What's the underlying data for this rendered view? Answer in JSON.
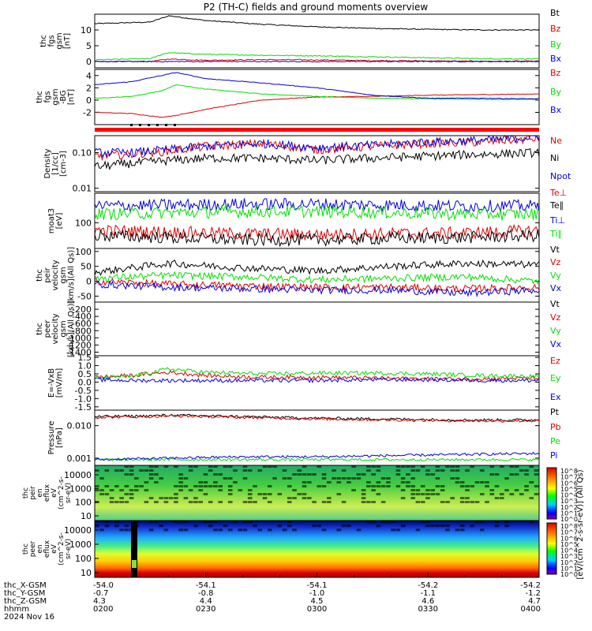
{
  "title": "P2 (TH-C) fields and ground moments overview",
  "colors": {
    "black": "#000000",
    "red": "#e00000",
    "green": "#00e000",
    "blue": "#0000e0"
  },
  "panels": [
    {
      "ylabel": [
        "thc",
        "fgs",
        "gsm",
        "[nT]"
      ],
      "yticks": [
        "10",
        "5",
        "0"
      ],
      "legend": [
        {
          "text": "Bt",
          "color": "#000000"
        },
        {
          "text": "Bz",
          "color": "#e00000"
        },
        {
          "text": "By",
          "color": "#00e000"
        },
        {
          "text": "Bx",
          "color": "#0000e0"
        }
      ]
    },
    {
      "ylabel": [
        "thc",
        "fgs",
        "gsm",
        "-BG",
        "[nT]"
      ],
      "yticks": [
        "4",
        "2",
        "0",
        "-2"
      ],
      "legend": [
        {
          "text": "Bz",
          "color": "#e00000"
        },
        {
          "text": "By",
          "color": "#00e000"
        },
        {
          "text": "Bx",
          "color": "#0000e0"
        }
      ]
    },
    {
      "ylabel": [
        "Density",
        "[1/cc]",
        "[cm-3]"
      ],
      "yticks": [
        "0.10",
        "0.01"
      ],
      "legend": [
        {
          "text": "Ne",
          "color": "#e00000"
        },
        {
          "text": "Ni",
          "color": "#000000"
        },
        {
          "text": "Npot",
          "color": "#0000e0"
        }
      ]
    },
    {
      "ylabel": [
        "moat3",
        "[eV]"
      ],
      "yticks": [
        "100"
      ],
      "legend": [
        {
          "text": "Te⊥",
          "color": "#e00000"
        },
        {
          "text": "Te∥",
          "color": "#000000"
        },
        {
          "text": "Ti⊥",
          "color": "#0000e0"
        },
        {
          "text": "Ti∥",
          "color": "#00e000"
        }
      ]
    },
    {
      "ylabel": [
        "thc",
        "peir",
        "velocity",
        "gsm",
        "[km/s](All Qs)]"
      ],
      "yticks": [
        "100",
        "50",
        "0",
        "-50"
      ],
      "legend": [
        {
          "text": "Vt",
          "color": "#000000"
        },
        {
          "text": "Vz",
          "color": "#e00000"
        },
        {
          "text": "Vy",
          "color": "#00e000"
        },
        {
          "text": "Vx",
          "color": "#0000e0"
        }
      ]
    },
    {
      "ylabel": [
        "thc",
        "peer",
        "velocity",
        "gsm",
        "[km/s](All Qs)]"
      ],
      "yticks": [
        "-200",
        "-400",
        "-600",
        "-800",
        "-1000",
        "-1200",
        "-1400"
      ],
      "legend": [
        {
          "text": "Vt",
          "color": "#000000"
        },
        {
          "text": "Vz",
          "color": "#e00000"
        },
        {
          "text": "Vy",
          "color": "#00e000"
        },
        {
          "text": "Vx",
          "color": "#0000e0"
        }
      ]
    },
    {
      "ylabel": [
        "E=-VxB",
        "[mV/m]"
      ],
      "yticks": [
        "1.5",
        "1.0",
        "0.5",
        "0.0",
        "-0.5",
        "-1.0",
        "-1.5"
      ],
      "legend": [
        {
          "text": "Ez",
          "color": "#e00000"
        },
        {
          "text": "Ey",
          "color": "#00e000"
        },
        {
          "text": "Ex",
          "color": "#0000e0"
        }
      ]
    },
    {
      "ylabel": [
        "Pressure",
        "[nPa]"
      ],
      "yticks": [
        "0.010",
        "0.001"
      ],
      "legend": [
        {
          "text": "Pt",
          "color": "#000000"
        },
        {
          "text": "Pb",
          "color": "#e00000"
        },
        {
          "text": "Pe",
          "color": "#00e000"
        },
        {
          "text": "Pi",
          "color": "#0000e0"
        }
      ]
    },
    {
      "ylabel": [
        "thc",
        "peir",
        "en",
        "eflux",
        "eV",
        "(cm^2-s-",
        "sr-eV)"
      ],
      "yticks": [
        "10000",
        "1000",
        "100",
        "10"
      ]
    },
    {
      "ylabel": [
        "thc",
        "peer",
        "en",
        "eflux",
        "eV",
        "(cm^2-s-",
        "sr-eV)"
      ],
      "yticks": [
        "10000",
        "1000",
        "100",
        "10"
      ]
    }
  ],
  "colorbar": {
    "label": "[eV/(cm^2-s-sr-eV)] (All Qs)",
    "ticks_ion": [
      "10^8",
      "10^7",
      "10^6",
      "10^5",
      "10^4",
      "10^3",
      "10^2",
      "10^1",
      "10^0"
    ],
    "ticks_elec": [
      "10^8",
      "10^7",
      "10^6",
      "10^5",
      "10^4",
      "10^3",
      "10^2",
      "10^1",
      "10^0"
    ]
  },
  "x_axis": {
    "rows": [
      {
        "label": "thc_X-GSM",
        "values": [
          "-54.0",
          "-54.1",
          "-54.1",
          "-54.2",
          "-54.2"
        ]
      },
      {
        "label": "thc_Y-GSM",
        "values": [
          "-0.7",
          "-0.8",
          "-1.0",
          "-1.1",
          "-1.2"
        ]
      },
      {
        "label": "thc_Z-GSM",
        "values": [
          "4.3",
          "4.4",
          "4.5",
          "4.6",
          "4.7"
        ]
      },
      {
        "label": "hhmm",
        "values": [
          "0200",
          "0230",
          "0300",
          "0330",
          "0400"
        ]
      }
    ],
    "date": "2024 Nov 16"
  },
  "chart_data": {
    "type": "line",
    "title": "P2 (TH-C) fields and ground moments overview",
    "x": [
      "0200",
      "0230",
      "0300",
      "0330",
      "0400"
    ],
    "xlabel": "hhmm",
    "panels": [
      {
        "ylabel": "thc fgs gsm [nT]",
        "ylim": [
          -2,
          15
        ],
        "series": [
          {
            "name": "Bt",
            "x": [
              0,
              15,
              20,
              30,
              45,
              60,
              75,
              90,
              105,
              120
            ],
            "values": [
              12,
              12.5,
              14.5,
              13,
              11.8,
              11,
              10.5,
              10.2,
              10,
              10
            ]
          },
          {
            "name": "Bz",
            "x": [
              0,
              15,
              20,
              30,
              45,
              60,
              75,
              90,
              105,
              120
            ],
            "values": [
              0,
              0,
              0.8,
              0.4,
              0.6,
              0.5,
              0.3,
              0.2,
              0.1,
              0.1
            ]
          },
          {
            "name": "By",
            "x": [
              0,
              15,
              20,
              30,
              45,
              60,
              75,
              90,
              105,
              120
            ],
            "values": [
              0.5,
              1,
              2.8,
              2.3,
              2,
              1.8,
              1.5,
              1.2,
              0.9,
              0.8
            ]
          },
          {
            "name": "Bx",
            "x": [
              0,
              15,
              20,
              30,
              45,
              60,
              75,
              90,
              105,
              120
            ],
            "values": [
              0,
              0,
              0,
              0,
              0,
              0,
              0,
              0,
              0,
              0
            ]
          }
        ]
      },
      {
        "ylabel": "thc fgs gsm -BG [nT]",
        "ylim": [
          -4,
          5
        ],
        "series": [
          {
            "name": "Bz",
            "x": [
              0,
              10,
              18,
              22,
              30,
              45,
              60,
              75,
              90,
              105,
              120
            ],
            "values": [
              -2,
              -2.2,
              -2.8,
              -2.5,
              -1.5,
              0,
              0.5,
              0.6,
              0.8,
              0.9,
              1.0
            ]
          },
          {
            "name": "By",
            "x": [
              0,
              10,
              18,
              22,
              30,
              45,
              60,
              75,
              90,
              105,
              120
            ],
            "values": [
              0.3,
              0.6,
              1.5,
              2.5,
              1.8,
              1.0,
              0.6,
              0.3,
              0.2,
              0.1,
              0.1
            ]
          },
          {
            "name": "Bx",
            "x": [
              0,
              10,
              18,
              22,
              30,
              45,
              60,
              75,
              90,
              105,
              120
            ],
            "values": [
              2.5,
              3.0,
              4.0,
              4.5,
              3.5,
              2.8,
              2.0,
              0.8,
              0.3,
              0.3,
              0.2
            ]
          }
        ]
      },
      {
        "ylabel": "Density [1/cc] [cm-3]",
        "ylim": [
          0.008,
          0.3
        ],
        "scale": "log",
        "series": [
          {
            "name": "Ne",
            "x": [
              0,
              10,
              20,
              30,
              45,
              60,
              75,
              90,
              105,
              120
            ],
            "values": [
              0.08,
              0.09,
              0.11,
              0.15,
              0.18,
              0.12,
              0.15,
              0.18,
              0.2,
              0.25
            ]
          },
          {
            "name": "Ni",
            "x": [
              0,
              10,
              20,
              30,
              45,
              60,
              75,
              90,
              105,
              120
            ],
            "values": [
              0.04,
              0.05,
              0.06,
              0.07,
              0.07,
              0.06,
              0.07,
              0.08,
              0.09,
              0.1
            ]
          },
          {
            "name": "Npot",
            "x": [
              0,
              10,
              20,
              30,
              45,
              60,
              75,
              90,
              105,
              120
            ],
            "values": [
              0.1,
              0.1,
              0.12,
              0.15,
              0.18,
              0.14,
              0.16,
              0.2,
              0.22,
              0.28
            ]
          }
        ]
      },
      {
        "ylabel": "moat3 [eV]",
        "ylim": [
          30,
          400
        ],
        "scale": "log",
        "series": [
          {
            "name": "Te⊥",
            "x": [
              0,
              20,
              40,
              60,
              80,
              100,
              120
            ],
            "values": [
              70,
              65,
              60,
              58,
              60,
              62,
              70
            ]
          },
          {
            "name": "Te∥",
            "x": [
              0,
              20,
              40,
              60,
              80,
              100,
              120
            ],
            "values": [
              55,
              50,
              45,
              45,
              48,
              50,
              55
            ]
          },
          {
            "name": "Ti⊥",
            "x": [
              0,
              20,
              40,
              60,
              80,
              100,
              120
            ],
            "values": [
              220,
              230,
              240,
              240,
              230,
              220,
              220
            ]
          },
          {
            "name": "Ti∥",
            "x": [
              0,
              20,
              40,
              60,
              80,
              100,
              120
            ],
            "values": [
              150,
              160,
              170,
              170,
              160,
              150,
              150
            ]
          }
        ]
      },
      {
        "ylabel": "thc peir velocity gsm [km/s](All Qs)]",
        "ylim": [
          -70,
          110
        ],
        "series": [
          {
            "name": "Vt",
            "x": [
              0,
              20,
              40,
              60,
              80,
              100,
              120
            ],
            "values": [
              30,
              60,
              45,
              35,
              50,
              60,
              55
            ]
          },
          {
            "name": "Vz",
            "x": [
              0,
              20,
              40,
              60,
              80,
              100,
              120
            ],
            "values": [
              0,
              -10,
              -15,
              -20,
              -20,
              -25,
              -20
            ]
          },
          {
            "name": "Vy",
            "x": [
              0,
              20,
              40,
              60,
              80,
              100,
              120
            ],
            "values": [
              10,
              20,
              15,
              5,
              10,
              15,
              0
            ]
          },
          {
            "name": "Vx",
            "x": [
              0,
              20,
              40,
              60,
              80,
              100,
              120
            ],
            "values": [
              -10,
              -20,
              -25,
              -30,
              -30,
              -40,
              -30
            ]
          }
        ]
      },
      {
        "ylabel": "thc peer velocity gsm [km/s](All Qs)]",
        "ylim": [
          -1500,
          0
        ],
        "series": []
      },
      {
        "ylabel": "E=-VxB [mV/m]",
        "ylim": [
          -1.7,
          1.6
        ],
        "series": [
          {
            "name": "Ez",
            "x": [
              0,
              10,
              20,
              30,
              45,
              60,
              75,
              90,
              105,
              120
            ],
            "values": [
              0.3,
              0.4,
              0.6,
              0.4,
              0.3,
              0.3,
              0.25,
              0.2,
              0.2,
              0.25
            ]
          },
          {
            "name": "Ey",
            "x": [
              0,
              10,
              20,
              30,
              45,
              60,
              75,
              90,
              105,
              120
            ],
            "values": [
              0.25,
              0.35,
              0.8,
              0.6,
              0.5,
              0.55,
              0.55,
              0.5,
              0.4,
              0.35
            ]
          },
          {
            "name": "Ex",
            "x": [
              0,
              10,
              20,
              30,
              45,
              60,
              75,
              90,
              105,
              120
            ],
            "values": [
              0.15,
              0.1,
              0.1,
              0.1,
              0.1,
              0.1,
              0.15,
              0.15,
              0.1,
              0.1
            ]
          }
        ]
      },
      {
        "ylabel": "Pressure [nPa]",
        "ylim": [
          0.0006,
          0.03
        ],
        "scale": "log",
        "series": [
          {
            "name": "Pt",
            "x": [
              0,
              15,
              20,
              40,
              60,
              80,
              100,
              120
            ],
            "values": [
              0.019,
              0.02,
              0.021,
              0.019,
              0.017,
              0.016,
              0.015,
              0.015
            ]
          },
          {
            "name": "Pb",
            "x": [
              0,
              15,
              20,
              40,
              60,
              80,
              100,
              120
            ],
            "values": [
              0.018,
              0.019,
              0.02,
              0.018,
              0.016,
              0.015,
              0.014,
              0.014
            ]
          },
          {
            "name": "Pe",
            "x": [
              0,
              20,
              40,
              60,
              80,
              100,
              120
            ],
            "values": [
              0.0009,
              0.0009,
              0.0009,
              0.0009,
              0.0009,
              0.0009,
              0.0009
            ]
          },
          {
            "name": "Pi",
            "x": [
              0,
              20,
              40,
              60,
              80,
              100,
              120
            ],
            "values": [
              0.0009,
              0.001,
              0.0011,
              0.0011,
              0.0012,
              0.0013,
              0.0014
            ]
          }
        ]
      }
    ]
  }
}
